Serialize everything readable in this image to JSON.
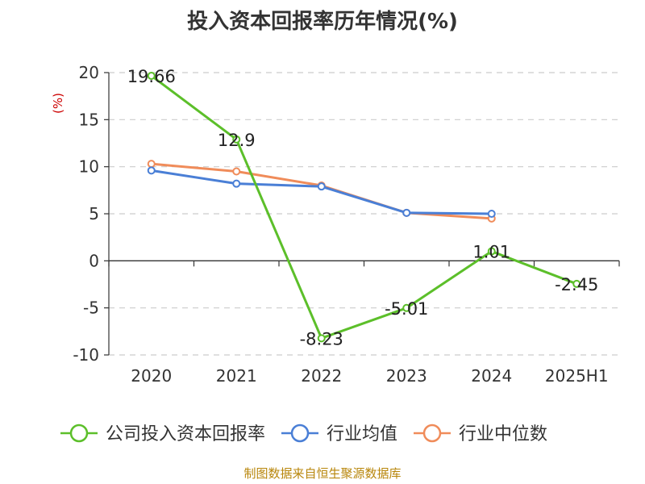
{
  "title": "投入资本回报率历年情况(%)",
  "source": "制图数据来自恒生聚源数据库",
  "chart_data": {
    "type": "line",
    "title": "投入资本回报率历年情况(%)",
    "xlabel": "",
    "ylabel": "(%)",
    "categories": [
      "2020",
      "2021",
      "2022",
      "2023",
      "2024",
      "2025H1"
    ],
    "ylim": [
      -10,
      20
    ],
    "yticks": [
      20,
      15,
      10,
      5,
      0,
      -5,
      -10
    ],
    "grid": true,
    "legend_position": "bottom",
    "series": [
      {
        "name": "公司投入资本回报率",
        "color": "#5cbf2a",
        "values": [
          19.66,
          12.9,
          -8.23,
          -5.01,
          1.01,
          -2.45
        ],
        "labels": [
          "19.66",
          "12.9",
          "-8.23",
          "-5.01",
          "1.01",
          "-2.45"
        ]
      },
      {
        "name": "行业均值",
        "color": "#4a7fd6",
        "values": [
          9.6,
          8.2,
          7.9,
          5.1,
          5.0,
          null
        ]
      },
      {
        "name": "行业中位数",
        "color": "#f08c5a",
        "values": [
          10.3,
          9.5,
          8.0,
          5.1,
          4.5,
          null
        ]
      }
    ]
  }
}
